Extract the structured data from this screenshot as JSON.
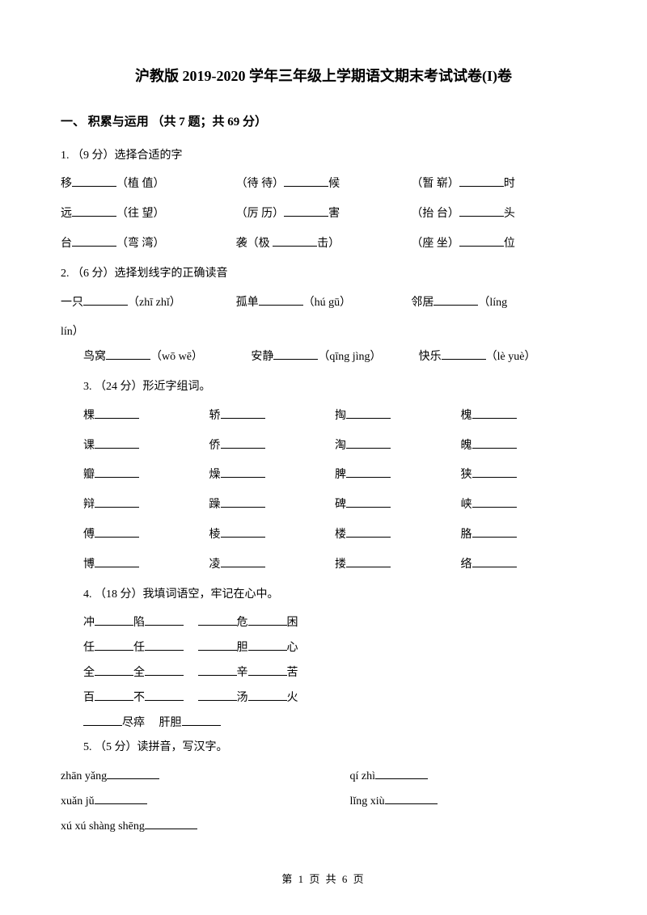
{
  "title": "沪教版 2019-2020 学年三年级上学期语文期末考试试卷(I)卷",
  "section1": "一、 积累与运用 （共 7 题；共 69 分）",
  "q1": {
    "prompt": "1. （9 分）选择合适的字",
    "r1a": "移",
    "r1a_opt": "（植  值）",
    "r1b_opt": "（待  待）",
    "r1b_end": "候",
    "r1c_opt": "（暂  崭）",
    "r1c_end": "时",
    "r2a": "远",
    "r2a_opt": "（往  望）",
    "r2b_opt": "（厉  历）",
    "r2b_end": "害",
    "r2c_opt": "（抬  台）",
    "r2c_end": "头",
    "r3a": "台",
    "r3a_opt": "（弯  湾）",
    "r3b_pre": "袭（极 ",
    "r3b_end": "击）",
    "r3c_opt": "（座  坐）",
    "r3c_end": "位"
  },
  "q2": {
    "prompt": "2. （6 分）选择划线字的正确读音",
    "r1a": "一只",
    "r1a_py": "（zhī   zhǐ）",
    "r1b": "孤单",
    "r1b_py": "（hú  gū）",
    "r1c": "邻居",
    "r1c_py": "（líng",
    "r1c2": "lín）",
    "r2a": "鸟窝",
    "r2a_py": "（wō  wē）",
    "r2b": "安静",
    "r2b_py": "（qīng  jìng）",
    "r2c": "快乐",
    "r2c_py": "（lè  yuè）"
  },
  "q3": {
    "prompt": "3. （24 分）形近字组词。",
    "rows": [
      [
        "棵",
        "轿",
        "掏",
        "槐"
      ],
      [
        "课",
        "侨",
        "淘",
        "魄"
      ],
      [
        "瓣",
        "燥",
        "脾",
        "狭"
      ],
      [
        "辩",
        "躁",
        "碑",
        "峡"
      ],
      [
        "傅",
        "棱",
        "楼",
        "胳"
      ],
      [
        "博",
        "凌",
        "搂",
        "络"
      ]
    ]
  },
  "q4": {
    "prompt": "4. （18 分）我填词语空，牢记在心中。",
    "r1a": "冲",
    "r1b": "陷",
    "r1c": "危",
    "r1d": "困",
    "r2a": "任",
    "r2b": "任",
    "r2c": "胆",
    "r2d": "心",
    "r3a": "全",
    "r3b": "全",
    "r3c": "辛",
    "r3d": "苦",
    "r4a": "百",
    "r4b": "不",
    "r4c": "汤",
    "r4d": "火",
    "r5a": "尽瘁",
    "r5b": "肝胆"
  },
  "q5": {
    "prompt": "5. （5 分）读拼音，写汉字。",
    "r1a": "zhān  yǎng",
    "r1b": "qí  zhì",
    "r2a": "xuǎn  jǔ",
    "r2b": "lǐng  xiù",
    "r3": "xú  xú  shàng  shēng"
  },
  "footer": "第 1 页 共 6 页"
}
